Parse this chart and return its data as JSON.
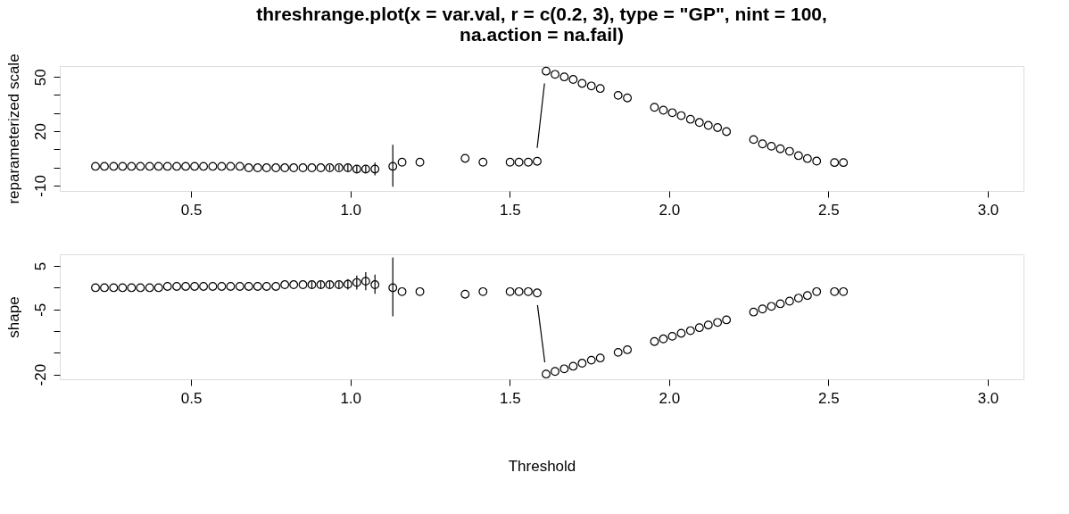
{
  "chart_data": [
    {
      "type": "scatter",
      "title": "threshrange.plot(x = var.val, r = c(0.2, 3), type = \"GP\", nint = 100,\nna.action = na.fail)",
      "ylabel": "reparameterized scale",
      "xlim": [
        0.088,
        3.112
      ],
      "xticks": [
        0.5,
        {
          "value": 1,
          "label": "1.0"
        },
        1.5,
        {
          "value": 2,
          "label": "2.0"
        },
        2.5,
        {
          "value": 3,
          "label": "3.0"
        }
      ],
      "ylim": [
        -13,
        56
      ],
      "yticks": [
        -10,
        {
          "value": 0,
          "label": null
        },
        {
          "value": 10,
          "label": null
        },
        20,
        {
          "value": 30,
          "label": null
        },
        {
          "value": 40,
          "label": null
        },
        50
      ],
      "grid": false,
      "marker": "circle",
      "x": [
        0.2,
        0.228,
        0.257,
        0.285,
        0.313,
        0.341,
        0.37,
        0.398,
        0.426,
        0.455,
        0.483,
        0.511,
        0.539,
        0.568,
        0.596,
        0.624,
        0.653,
        0.681,
        0.709,
        0.737,
        0.766,
        0.794,
        0.822,
        0.851,
        0.879,
        0.907,
        0.935,
        0.964,
        0.992,
        1.02,
        1.048,
        1.077,
        1.133,
        1.162,
        1.218,
        1.36,
        1.416,
        1.501,
        1.529,
        1.558,
        1.586,
        1.614,
        1.642,
        1.671,
        1.699,
        1.727,
        1.756,
        1.784,
        1.84,
        1.869,
        1.954,
        1.982,
        2.01,
        2.038,
        2.067,
        2.095,
        2.123,
        2.152,
        2.18,
        2.265,
        2.293,
        2.321,
        2.349,
        2.378,
        2.406,
        2.434,
        2.463,
        2.519,
        2.547
      ],
      "series": [
        {
          "color": "#000000",
          "values": [
            0.6,
            0.6,
            0.6,
            0.6,
            0.6,
            0.6,
            0.6,
            0.6,
            0.6,
            0.6,
            0.6,
            0.6,
            0.6,
            0.6,
            0.6,
            0.6,
            0.6,
            -0.2,
            -0.2,
            -0.2,
            -0.2,
            -0.2,
            -0.2,
            -0.2,
            -0.2,
            -0.2,
            -0.2,
            -0.2,
            -0.2,
            -0.9,
            -0.9,
            -0.9,
            0.6,
            2.9,
            2.9,
            5.0,
            2.9,
            2.9,
            2.9,
            2.9,
            3.4,
            53.2,
            51.4,
            50.0,
            48.6,
            46.4,
            45.0,
            43.6,
            39.8,
            38.4,
            33.2,
            31.6,
            30.2,
            28.6,
            26.6,
            24.8,
            23.2,
            22.0,
            19.8,
            15.4,
            13.0,
            11.7,
            10.3,
            8.9,
            6.5,
            4.9,
            3.5,
            2.7,
            2.7
          ],
          "errors": [
            null,
            null,
            null,
            null,
            null,
            null,
            null,
            null,
            null,
            null,
            null,
            null,
            null,
            null,
            null,
            null,
            null,
            null,
            null,
            null,
            null,
            null,
            null,
            null,
            null,
            null,
            1.5,
            1.5,
            2,
            2,
            2,
            3.5,
            [
              -10.7,
              12.5
            ],
            null,
            null,
            null,
            null,
            null,
            null,
            null,
            null,
            null,
            null,
            null,
            null,
            null,
            null,
            null,
            null,
            null,
            null,
            null,
            null,
            null,
            null,
            null,
            null,
            null,
            null,
            null,
            null,
            null,
            null,
            null,
            null,
            null,
            null,
            null,
            null
          ]
        },
        {
          "type": "line",
          "marker": "none",
          "color": "#000000",
          "x": [
            1.586,
            1.609
          ],
          "values": [
            10.8,
            46.4
          ]
        }
      ]
    },
    {
      "type": "scatter",
      "ylabel": "shape",
      "xlabel": "Threshold",
      "xlim": [
        0.088,
        3.112
      ],
      "xticks": [
        0.5,
        {
          "value": 1,
          "label": "1.0"
        },
        1.5,
        {
          "value": 2,
          "label": "2.0"
        },
        2.5,
        {
          "value": 3,
          "label": "3.0"
        }
      ],
      "ylim": [
        -21.1,
        7.7
      ],
      "yticks": [
        -20,
        {
          "value": -15,
          "label": null
        },
        {
          "value": -10,
          "label": null
        },
        -5,
        {
          "value": 0,
          "label": null
        },
        5
      ],
      "grid": false,
      "marker": "circle",
      "x": [
        0.2,
        0.228,
        0.257,
        0.285,
        0.313,
        0.341,
        0.37,
        0.398,
        0.426,
        0.455,
        0.483,
        0.511,
        0.539,
        0.568,
        0.596,
        0.624,
        0.653,
        0.681,
        0.709,
        0.737,
        0.766,
        0.794,
        0.822,
        0.851,
        0.879,
        0.907,
        0.935,
        0.964,
        0.992,
        1.02,
        1.048,
        1.077,
        1.133,
        1.162,
        1.218,
        1.36,
        1.416,
        1.501,
        1.529,
        1.558,
        1.586,
        1.614,
        1.642,
        1.671,
        1.699,
        1.727,
        1.756,
        1.784,
        1.84,
        1.869,
        1.954,
        1.982,
        2.01,
        2.038,
        2.067,
        2.095,
        2.123,
        2.152,
        2.18,
        2.265,
        2.293,
        2.321,
        2.349,
        2.378,
        2.406,
        2.434,
        2.463,
        2.519,
        2.547
      ],
      "series": [
        {
          "color": "#000000",
          "values": [
            0.0,
            0.0,
            0.0,
            0.0,
            0.0,
            0.0,
            0.0,
            0.0,
            0.3,
            0.3,
            0.3,
            0.3,
            0.3,
            0.3,
            0.3,
            0.3,
            0.3,
            0.3,
            0.3,
            0.3,
            0.3,
            0.7,
            0.7,
            0.7,
            0.7,
            0.7,
            0.7,
            0.7,
            0.8,
            1.2,
            1.5,
            0.7,
            0.0,
            -0.9,
            -0.9,
            -1.5,
            -0.9,
            -0.9,
            -0.9,
            -0.9,
            -1.2,
            -19.9,
            -19.3,
            -18.7,
            -18.1,
            -17.4,
            -16.7,
            -16.2,
            -14.9,
            -14.3,
            -12.4,
            -11.8,
            -11.2,
            -10.5,
            -9.9,
            -9.2,
            -8.6,
            -8.0,
            -7.4,
            -5.6,
            -4.9,
            -4.3,
            -3.7,
            -3.1,
            -2.4,
            -1.8,
            -0.9,
            -0.9,
            -0.9
          ],
          "errors": [
            null,
            null,
            null,
            null,
            null,
            null,
            null,
            null,
            null,
            null,
            null,
            null,
            null,
            null,
            null,
            null,
            null,
            null,
            null,
            null,
            null,
            null,
            null,
            null,
            0.8,
            0.8,
            0.8,
            0.8,
            1.2,
            1.6,
            [
              -0.6,
              3.6
            ],
            [
              -1.4,
              3.0
            ],
            [
              -6.6,
              7.0
            ],
            null,
            null,
            null,
            null,
            null,
            null,
            null,
            null,
            null,
            null,
            null,
            null,
            null,
            null,
            null,
            null,
            null,
            null,
            null,
            null,
            null,
            null,
            null,
            null,
            null,
            null,
            null,
            null,
            null,
            null,
            null,
            null,
            null,
            null,
            null,
            null
          ]
        },
        {
          "type": "line",
          "marker": "none",
          "color": "#000000",
          "x": [
            1.587,
            1.61
          ],
          "values": [
            -4.0,
            -17.2
          ]
        }
      ]
    }
  ]
}
